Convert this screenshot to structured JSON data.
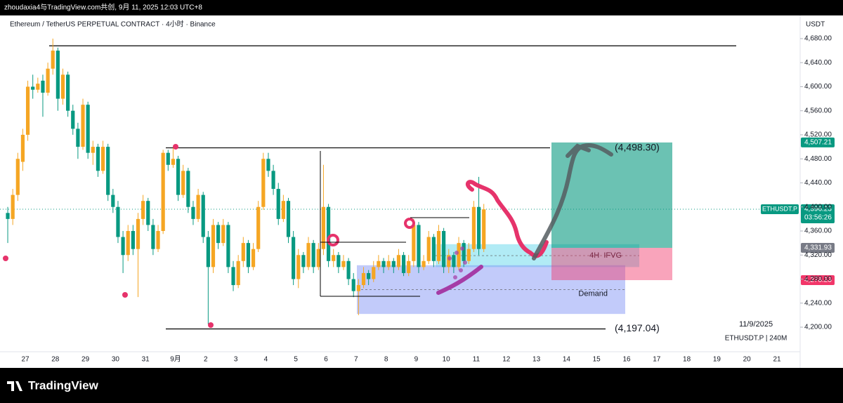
{
  "header": {
    "caption": "zhoudaxia4与TradingView.com共创, 9月 11, 2025 12:03 UTC+8",
    "brand": "TradingView"
  },
  "chart_data": {
    "type": "candlestick",
    "title": "Ethereum / TetherUS PERPETUAL CONTRACT · 4小时 · Binance",
    "y_axis_label": "USDT",
    "up_color": "#f5a623",
    "down_color": "#089981",
    "categories": [
      null,
      "27",
      "28",
      "29",
      "30",
      "31",
      "9月",
      "2",
      "3",
      "4",
      "5",
      "6",
      "7",
      "8",
      "9",
      "10",
      "11",
      "12",
      "13",
      "14",
      "15",
      "16",
      "17",
      "18",
      "19",
      "20",
      "21"
    ],
    "candles": [
      [
        null,
        null,
        [
          4390,
          4400,
          4340,
          4380
        ],
        [
          4380,
          4430,
          4370,
          4420
        ],
        [
          4420,
          4490,
          4410,
          4480
        ],
        [
          4475,
          4530,
          4460,
          4520
        ]
      ],
      [
        [
          4520,
          4610,
          4510,
          4600
        ],
        [
          4600,
          4620,
          4580,
          4595
        ],
        [
          4595,
          4615,
          4590,
          4605
        ],
        [
          4610,
          4620,
          4550,
          4590
        ],
        [
          4590,
          4640,
          4585,
          4630
        ],
        [
          4630,
          4680,
          4620,
          4660
        ]
      ],
      [
        [
          4660,
          4665,
          4560,
          4580
        ],
        [
          4580,
          4630,
          4570,
          4620
        ],
        [
          4620,
          4625,
          4550,
          4560
        ],
        [
          4560,
          4570,
          4520,
          4530
        ],
        [
          4530,
          4540,
          4480,
          4500
        ],
        [
          4500,
          4580,
          4495,
          4570
        ]
      ],
      [
        [
          4570,
          4575,
          4480,
          4490
        ],
        [
          4490,
          4510,
          4470,
          4500
        ],
        [
          4500,
          4505,
          4450,
          4460
        ],
        [
          4460,
          4510,
          4455,
          4500
        ],
        [
          4500,
          4505,
          4410,
          4420
        ],
        [
          4420,
          4430,
          4390,
          4400
        ]
      ],
      [
        [
          4400,
          4410,
          4340,
          4350
        ],
        [
          4350,
          4360,
          4290,
          4320
        ],
        [
          4320,
          4370,
          4310,
          4360
        ],
        [
          4360,
          4370,
          4320,
          4330
        ],
        [
          4330,
          4390,
          4250,
          4380
        ],
        [
          4380,
          4420,
          4370,
          4410
        ]
      ],
      [
        [
          4410,
          4415,
          4360,
          4370
        ],
        [
          4370,
          4380,
          4320,
          4330
        ],
        [
          4330,
          4370,
          4325,
          4360
        ],
        [
          4360,
          4495,
          4355,
          4490
        ],
        [
          4490,
          4495,
          4460,
          4470
        ],
        [
          4470,
          4498,
          4465,
          4480
        ]
      ],
      [
        [
          4480,
          4485,
          4410,
          4420
        ],
        [
          4420,
          4470,
          4415,
          4460
        ],
        [
          4460,
          4465,
          4390,
          4400
        ],
        [
          4400,
          4410,
          4370,
          4380
        ],
        [
          4380,
          4430,
          4375,
          4420
        ],
        [
          4420,
          4425,
          4340,
          4350
        ]
      ],
      [
        [
          4350,
          4360,
          4205,
          4300
        ],
        [
          4300,
          4380,
          4290,
          4370
        ],
        [
          4370,
          4375,
          4330,
          4340
        ],
        [
          4340,
          4380,
          4335,
          4370
        ],
        [
          4370,
          4375,
          4290,
          4300
        ],
        [
          4300,
          4310,
          4260,
          4270
        ]
      ],
      [
        [
          4270,
          4320,
          4265,
          4310
        ],
        [
          4310,
          4350,
          4300,
          4340
        ],
        [
          4340,
          4345,
          4290,
          4300
        ],
        [
          4300,
          4340,
          4295,
          4330
        ],
        [
          4330,
          4410,
          4325,
          4400
        ],
        [
          4400,
          4490,
          4395,
          4480
        ]
      ],
      [
        [
          4480,
          4490,
          4450,
          4460
        ],
        [
          4460,
          4470,
          4420,
          4430
        ],
        [
          4430,
          4440,
          4370,
          4380
        ],
        [
          4380,
          4420,
          4375,
          4410
        ],
        [
          4410,
          4415,
          4340,
          4350
        ],
        [
          4350,
          4360,
          4270,
          4280
        ]
      ],
      [
        [
          4280,
          4330,
          4265,
          4320
        ],
        [
          4320,
          4325,
          4290,
          4300
        ],
        [
          4300,
          4350,
          4295,
          4340
        ],
        [
          4340,
          4345,
          4290,
          4300
        ],
        [
          4300,
          4340,
          4295,
          4330
        ],
        [
          4330,
          4470,
          4320,
          4400
        ]
      ],
      [
        [
          4400,
          4405,
          4300,
          4310
        ],
        [
          4310,
          4330,
          4300,
          4320
        ],
        [
          4320,
          4325,
          4290,
          4300
        ],
        [
          4300,
          4320,
          4295,
          4310
        ],
        [
          4310,
          4315,
          4270,
          4280
        ],
        [
          4280,
          4290,
          4250,
          4260
        ]
      ],
      [
        [
          4260,
          4280,
          4220,
          4270
        ],
        [
          4270,
          4300,
          4265,
          4290
        ],
        [
          4290,
          4295,
          4270,
          4280
        ],
        [
          4280,
          4310,
          4275,
          4300
        ],
        [
          4300,
          4320,
          4295,
          4310
        ],
        [
          4310,
          4315,
          4290,
          4300
        ]
      ],
      [
        [
          4300,
          4320,
          4295,
          4310
        ],
        [
          4310,
          4315,
          4290,
          4300
        ],
        [
          4300,
          4330,
          4295,
          4320
        ],
        [
          4320,
          4325,
          4285,
          4290
        ],
        [
          4290,
          4320,
          4285,
          4310
        ],
        [
          4310,
          4380,
          4300,
          4370
        ]
      ],
      [
        [
          4370,
          4375,
          4290,
          4300
        ],
        [
          4300,
          4320,
          4295,
          4310
        ],
        [
          4310,
          4360,
          4305,
          4350
        ],
        [
          4350,
          4355,
          4300,
          4310
        ],
        [
          4310,
          4370,
          4305,
          4360
        ],
        [
          4360,
          4365,
          4290,
          4300
        ]
      ],
      [
        [
          4300,
          4330,
          4290,
          4320
        ],
        [
          4320,
          4325,
          4290,
          4300
        ],
        [
          4300,
          4350,
          4295,
          4340
        ],
        [
          4340,
          4345,
          4300,
          4310
        ],
        [
          4310,
          4340,
          4305,
          4330
        ],
        [
          4330,
          4410,
          4325,
          4400
        ]
      ],
      [
        [
          4400,
          4450,
          4320,
          4330
        ],
        [
          4330,
          4405,
          4325,
          4396
        ]
      ],
      [],
      [],
      [],
      [],
      [],
      [],
      [],
      [],
      [],
      []
    ],
    "ylim": [
      4134.6,
      4718.5
    ],
    "yticks": [
      {
        "value": 4200,
        "label": "4,200.00"
      },
      {
        "value": 4240,
        "label": "4,240.00"
      },
      {
        "value": 4280,
        "label": "4,280.00"
      },
      {
        "value": 4320,
        "label": "4,320.00"
      },
      {
        "value": 4360,
        "label": "4,360.00"
      },
      {
        "value": 4400,
        "label": "4,400.00"
      },
      {
        "value": 4440,
        "label": "4,440.00"
      },
      {
        "value": 4480,
        "label": "4,480.00"
      },
      {
        "value": 4520,
        "label": "4,520.00"
      },
      {
        "value": 4560,
        "label": "4,560.00"
      },
      {
        "value": 4600,
        "label": "4,600.00"
      },
      {
        "value": 4640,
        "label": "4,640.00"
      },
      {
        "value": 4680,
        "label": "4,680.00"
      }
    ],
    "last_price": {
      "symbol": "ETHUSDT.P",
      "value": 4396.23,
      "label": "4,396.23",
      "countdown": "03:56:26",
      "color": "#089981"
    },
    "levels": [
      {
        "value": 4668
      },
      {
        "value": 4498.3,
        "label": "(4,498.30)"
      },
      {
        "value": 4197.04,
        "label": "(4,197.04)"
      }
    ],
    "position": {
      "target": {
        "value": 4507.21,
        "label": "4,507.21"
      },
      "entry": {
        "value": 4331.93,
        "label": "4,331.93"
      },
      "stop": {
        "value": 4278.23,
        "label": "4,278.23"
      }
    },
    "zones": [
      {
        "name": "4H  IFVG",
        "low": 4300,
        "high": 4338
      },
      {
        "name": "Demand",
        "low": 4222,
        "high": 4303
      }
    ],
    "info": {
      "date": "11/9/2025",
      "symbol": "ETHUSDT.P | 240M"
    }
  }
}
